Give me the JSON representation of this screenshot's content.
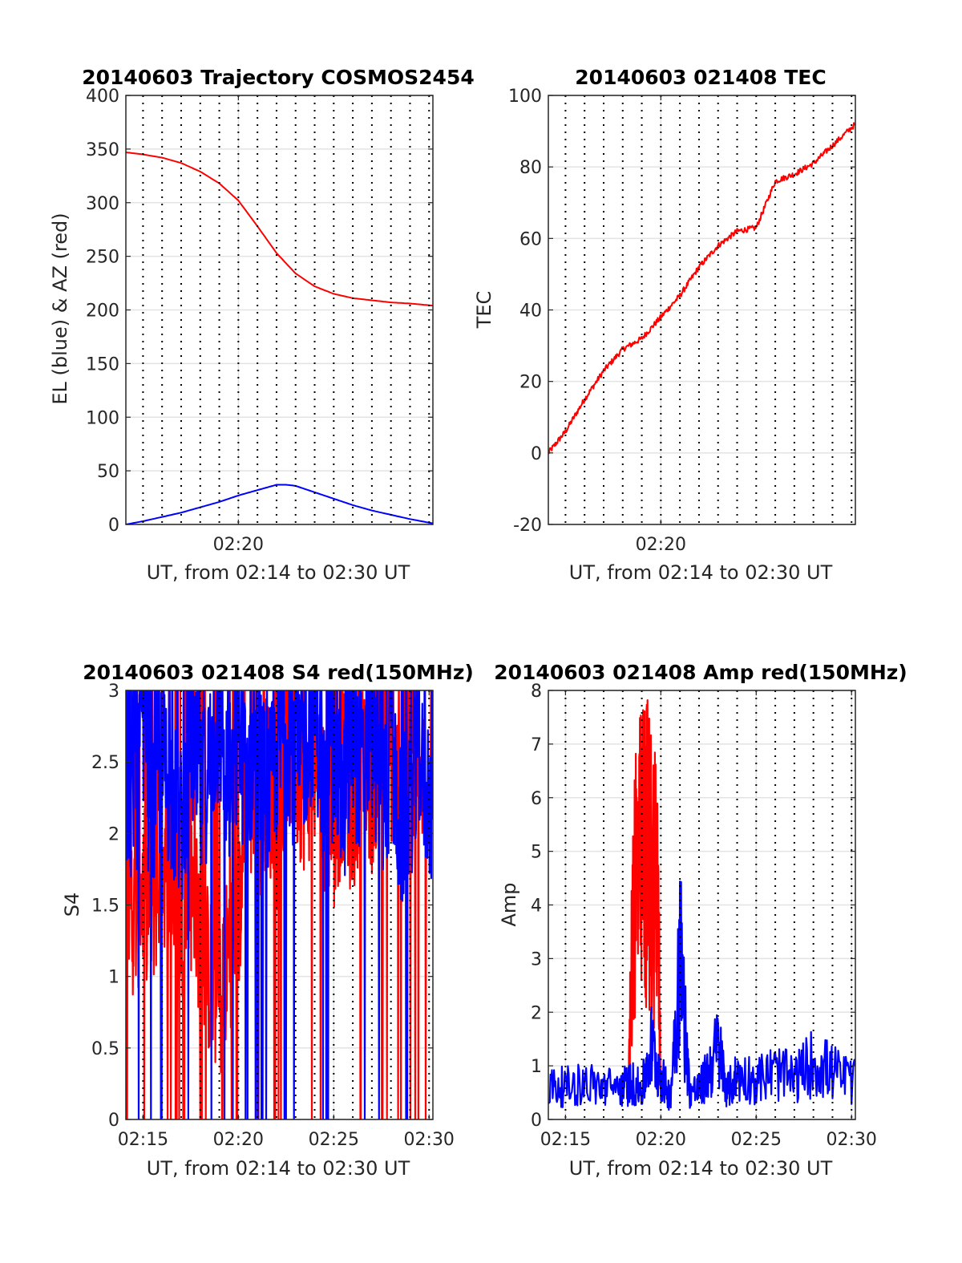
{
  "figure": {
    "panels": [
      {
        "id": "trajectory",
        "title": "20140603 Trajectory COSMOS2454",
        "xlabel": "UT, from 02:14 to 02:30 UT",
        "ylabel": "EL (blue) & AZ (red)"
      },
      {
        "id": "tec",
        "title": "20140603 021408 TEC",
        "xlabel": "UT, from 02:14 to 02:30 UT",
        "ylabel": "TEC"
      },
      {
        "id": "s4",
        "title": "20140603 021408 S4 red(150MHz)",
        "xlabel": "UT, from 02:14 to 02:30 UT",
        "ylabel": "S4"
      },
      {
        "id": "amp",
        "title": "20140603 021408 Amp red(150MHz)",
        "xlabel": "UT, from 02:14 to 02:30 UT",
        "ylabel": "Amp"
      }
    ]
  },
  "chart_data": [
    {
      "type": "line",
      "title": "20140603 Trajectory COSMOS2454",
      "xlabel": "UT, from 02:14 to 02:30 UT",
      "ylabel": "EL (blue) & AZ (red)",
      "x_unit": "minutes after 02:00 UT",
      "xlim": [
        14.1,
        30.2
      ],
      "ylim": [
        0,
        400
      ],
      "xticks": [
        20
      ],
      "xtick_labels": [
        "02:20"
      ],
      "yticks": [
        0,
        50,
        100,
        150,
        200,
        250,
        300,
        350,
        400
      ],
      "ytick_labels": [
        "0",
        "50",
        "100",
        "150",
        "200",
        "250",
        "300",
        "350",
        "400"
      ],
      "grid": true,
      "minute_marker_lines": true,
      "series": [
        {
          "color": "#ff0000",
          "x": [
            14.1,
            15,
            16,
            17,
            18,
            19,
            20,
            21,
            22,
            23,
            24,
            25,
            26,
            27,
            28,
            29,
            30.2
          ],
          "values": [
            347,
            345,
            342,
            337,
            329,
            318,
            302,
            278,
            253,
            234,
            222,
            215,
            211,
            209,
            207,
            206,
            204
          ]
        },
        {
          "color": "#0000ff",
          "x": [
            14.1,
            15,
            16,
            17,
            18,
            19,
            20,
            21,
            22,
            22.5,
            23,
            24,
            25,
            26,
            27,
            28,
            29,
            30.2
          ],
          "values": [
            0,
            3,
            7,
            11,
            16,
            21,
            27,
            32,
            37,
            37,
            36,
            30,
            24,
            18,
            13,
            9,
            5,
            1
          ]
        }
      ]
    },
    {
      "type": "line",
      "title": "20140603 021408 TEC",
      "xlabel": "UT, from 02:14 to 02:30 UT",
      "ylabel": "TEC",
      "x_unit": "minutes after 02:00 UT",
      "xlim": [
        14.1,
        30.2
      ],
      "ylim": [
        -20,
        100
      ],
      "xticks": [
        20
      ],
      "xtick_labels": [
        "02:20"
      ],
      "yticks": [
        -20,
        0,
        20,
        40,
        60,
        80,
        100
      ],
      "ytick_labels": [
        "-20",
        "0",
        "20",
        "40",
        "60",
        "80",
        "100"
      ],
      "grid": true,
      "minute_marker_lines": true,
      "series": [
        {
          "color": "#ff0000",
          "x": [
            14.1,
            15,
            16,
            17,
            18,
            19,
            20,
            21,
            22,
            23,
            24,
            25,
            26,
            27,
            28,
            29,
            30.2
          ],
          "values": [
            0,
            6,
            15,
            23,
            29,
            32,
            38,
            44,
            52,
            58,
            62,
            63,
            76,
            78,
            81,
            86,
            92
          ]
        }
      ]
    },
    {
      "type": "line",
      "title": "20140603 021408 S4 red(150MHz)",
      "xlabel": "UT, from 02:14 to 02:30 UT",
      "ylabel": "S4",
      "x_unit": "minutes after 02:00 UT",
      "xlim": [
        14.1,
        30.2
      ],
      "ylim": [
        0,
        3
      ],
      "xticks": [
        15,
        20,
        25,
        30
      ],
      "xtick_labels": [
        "02:15",
        "02:20",
        "02:25",
        "02:30"
      ],
      "yticks": [
        0,
        0.5,
        1,
        1.5,
        2,
        2.5,
        3
      ],
      "ytick_labels": [
        "0",
        "0.5",
        "1",
        "1.5",
        "2",
        "2.5",
        "3"
      ],
      "grid": true,
      "minute_marker_lines": true,
      "series": [
        {
          "color": "#ff0000",
          "x": [
            14.1,
            14.5,
            15,
            15.5,
            16,
            16.5,
            17,
            17.5,
            18,
            18.5,
            19,
            19.5,
            20,
            20.5,
            21,
            21.5,
            22,
            22.5,
            23,
            23.5,
            24,
            24.5,
            25,
            25.5,
            26,
            26.5,
            27,
            27.5,
            28,
            28.5,
            29,
            29.5,
            30.2
          ],
          "values": [
            1.9,
            1.4,
            1.6,
            1.5,
            1.8,
            1.7,
            1.4,
            1.6,
            1.3,
            1.0,
            0.8,
            1.2,
            1.4,
            2.3,
            2.1,
            2.4,
            2.0,
            2.6,
            2.5,
            2.3,
            2.5,
            2.2,
            2.0,
            2.4,
            2.1,
            2.6,
            2.3,
            2.7,
            2.5,
            2.2,
            2.6,
            2.3,
            2.5
          ]
        },
        {
          "color": "#0000ff",
          "x": [
            14.1,
            14.5,
            15,
            15.5,
            16,
            16.5,
            17,
            17.5,
            18,
            18.5,
            19,
            19.5,
            20,
            20.5,
            21,
            21.5,
            22,
            22.5,
            23,
            23.5,
            24,
            24.5,
            25,
            25.5,
            26,
            26.5,
            27,
            27.5,
            28,
            28.5,
            29,
            29.5,
            30.2
          ],
          "values": [
            2.4,
            2.2,
            2.6,
            2.1,
            2.5,
            2.3,
            2.0,
            2.7,
            2.2,
            2.5,
            2.8,
            2.3,
            2.6,
            2.4,
            2.7,
            2.2,
            2.5,
            2.8,
            2.4,
            2.6,
            2.9,
            2.3,
            2.5,
            2.2,
            2.6,
            2.4,
            2.7,
            2.2,
            2.5,
            2.0,
            2.3,
            2.4,
            2.2
          ]
        }
      ]
    },
    {
      "type": "line",
      "title": "20140603 021408 Amp red(150MHz)",
      "xlabel": "UT, from 02:14 to 02:30 UT",
      "ylabel": "Amp",
      "x_unit": "minutes after 02:00 UT",
      "xlim": [
        14.1,
        30.2
      ],
      "ylim": [
        0,
        8
      ],
      "xticks": [
        15,
        20,
        25,
        30
      ],
      "xtick_labels": [
        "02:15",
        "02:20",
        "02:25",
        "02:30"
      ],
      "yticks": [
        0,
        1,
        2,
        3,
        4,
        5,
        6,
        7,
        8
      ],
      "ytick_labels": [
        "0",
        "1",
        "2",
        "3",
        "4",
        "5",
        "6",
        "7",
        "8"
      ],
      "grid": true,
      "minute_marker_lines": true,
      "series": [
        {
          "color": "#ff0000",
          "x": [
            18.3,
            18.6,
            18.9,
            19.2,
            19.5,
            19.8,
            20.0
          ],
          "values": [
            0.7,
            6.9,
            6.9,
            7.5,
            6.8,
            6.8,
            1.0
          ]
        },
        {
          "color": "#0000ff",
          "x": [
            14.1,
            15,
            16,
            17,
            18,
            18.5,
            19,
            19.5,
            20,
            20.5,
            21,
            21.5,
            22,
            22.5,
            23,
            23.5,
            24,
            25,
            26,
            27,
            28,
            29,
            30.2
          ],
          "values": [
            0.9,
            0.9,
            1.0,
            0.9,
            0.9,
            1.0,
            0.8,
            2.0,
            1.2,
            0.6,
            4.7,
            0.8,
            0.8,
            1.3,
            2.0,
            0.8,
            1.2,
            1.1,
            1.3,
            1.1,
            1.6,
            1.3,
            1.0
          ]
        }
      ]
    }
  ]
}
